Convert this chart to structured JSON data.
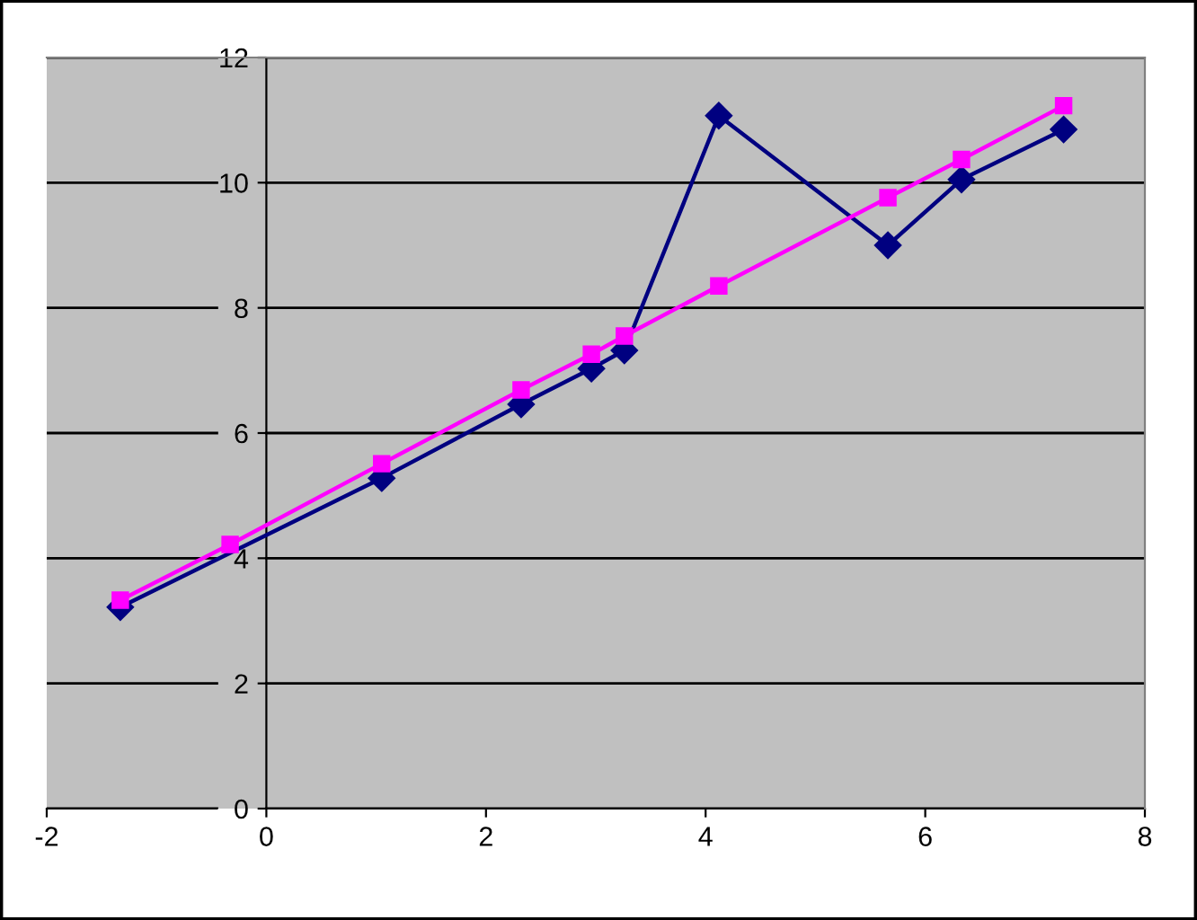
{
  "chart_data": {
    "type": "line",
    "xlim": [
      -2,
      8
    ],
    "xticks": [
      -2,
      0,
      2,
      4,
      6,
      8
    ],
    "ylim": [
      0,
      12
    ],
    "yticks": [
      0,
      2,
      4,
      6,
      8,
      10,
      12
    ],
    "grid": "y",
    "legend": false,
    "series": [
      {
        "color": "#000080",
        "marker": "diamond",
        "x": [
          -1.33,
          1.05,
          2.32,
          2.96,
          3.26,
          4.12,
          5.66,
          6.33,
          7.26
        ],
        "values": [
          3.22,
          5.28,
          6.46,
          7.03,
          7.32,
          11.07,
          9.0,
          10.05,
          10.85
        ]
      },
      {
        "color": "#ff00ff",
        "marker": "square",
        "x": [
          -1.33,
          -0.33,
          1.05,
          2.32,
          2.96,
          3.26,
          4.12,
          5.66,
          6.33,
          7.26
        ],
        "values": [
          3.33,
          4.22,
          5.51,
          6.69,
          7.26,
          7.55,
          8.35,
          9.76,
          10.37,
          11.23
        ]
      }
    ]
  }
}
